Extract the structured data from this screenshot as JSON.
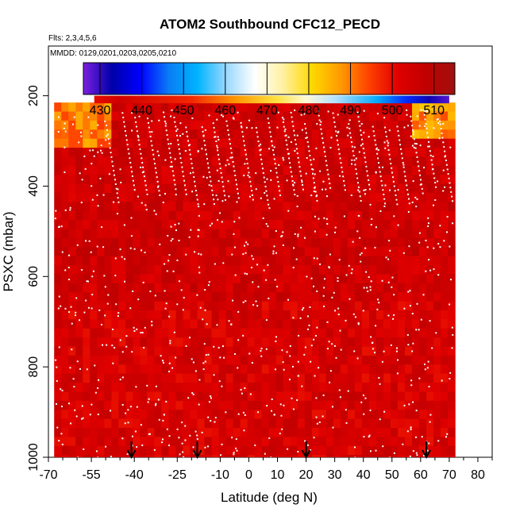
{
  "chart_data": {
    "type": "heatmap",
    "title": "ATOM2 Southbound CFC12_PECD",
    "flights_label": "Flts: 2,3,4,5,6",
    "dates_label": "MMDD: 0129,0201,0203,0205,0210",
    "xlabel": "Latitude (deg N)",
    "ylabel": "PSXC (mbar)",
    "xlim": [
      -70,
      85
    ],
    "ylim": [
      1000,
      90
    ],
    "y_reversed": true,
    "x_ticks": [
      -70,
      -55,
      -40,
      -25,
      -10,
      0,
      10,
      20,
      30,
      40,
      50,
      60,
      70,
      80
    ],
    "x_ticks_minor": [
      -65,
      -60,
      -50,
      -45,
      -35,
      -30,
      -20,
      -15,
      -5,
      5,
      15,
      25,
      35,
      45,
      55,
      65,
      75,
      85
    ],
    "y_ticks": [
      200,
      400,
      600,
      800,
      1000
    ],
    "colorbar": {
      "range": [
        426,
        515
      ],
      "ticks": [
        430,
        440,
        450,
        460,
        470,
        480,
        490,
        500,
        510
      ],
      "colors": [
        "#7b1fe0",
        "#0000a8",
        "#0000ff",
        "#0a7df5",
        "#00b4ff",
        "#9ad8ff",
        "#ffffff",
        "#fff0a0",
        "#ffd800",
        "#ff9a00",
        "#ff4000",
        "#e00000",
        "#c00000",
        "#a01010"
      ]
    },
    "coverage": {
      "lat": [
        -68,
        71
      ],
      "pressure": [
        215,
        1000
      ]
    },
    "upper_band": {
      "lat": [
        -54,
        70
      ],
      "pressure": [
        200,
        215
      ],
      "value_range": [
        430,
        512
      ]
    },
    "typical_value": 505,
    "profile_latitudes": [
      -41,
      -18,
      20,
      62
    ]
  }
}
